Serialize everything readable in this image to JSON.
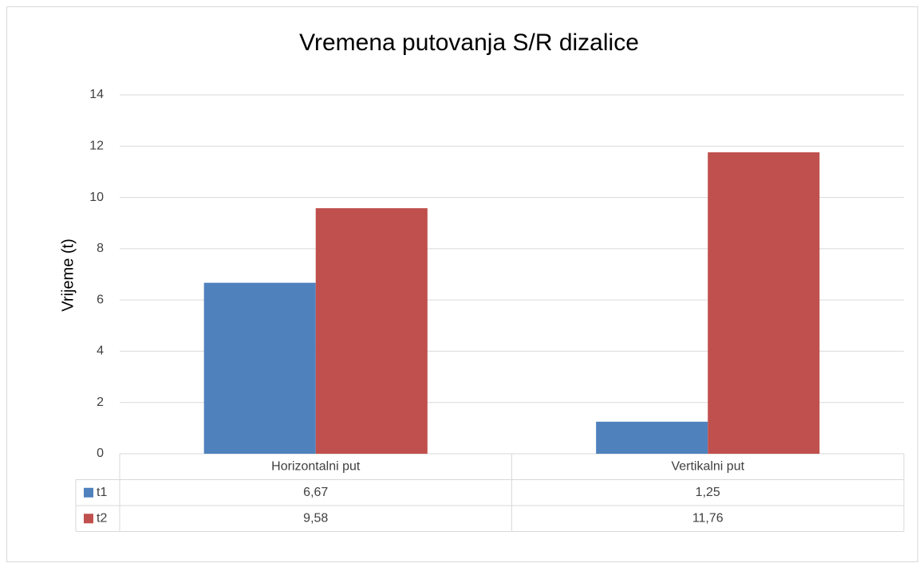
{
  "chart_data": {
    "type": "bar",
    "title": "Vremena putovanja S/R dizalice",
    "y_label": "Vrijeme (t)",
    "categories": [
      "Horizontalni put",
      "Vertikalni put"
    ],
    "series": [
      {
        "name": "t1",
        "color": "#4f81bd",
        "values": [
          6.67,
          1.25
        ],
        "value_labels": [
          "6,67",
          "1,25"
        ]
      },
      {
        "name": "t2",
        "color": "#c0504d",
        "values": [
          9.58,
          11.76
        ],
        "value_labels": [
          "9,58",
          "11,76"
        ]
      }
    ],
    "ylim": [
      0,
      14
    ],
    "yticks": [
      0,
      2,
      4,
      6,
      8,
      10,
      12,
      14
    ],
    "grid": true,
    "data_table": true
  }
}
